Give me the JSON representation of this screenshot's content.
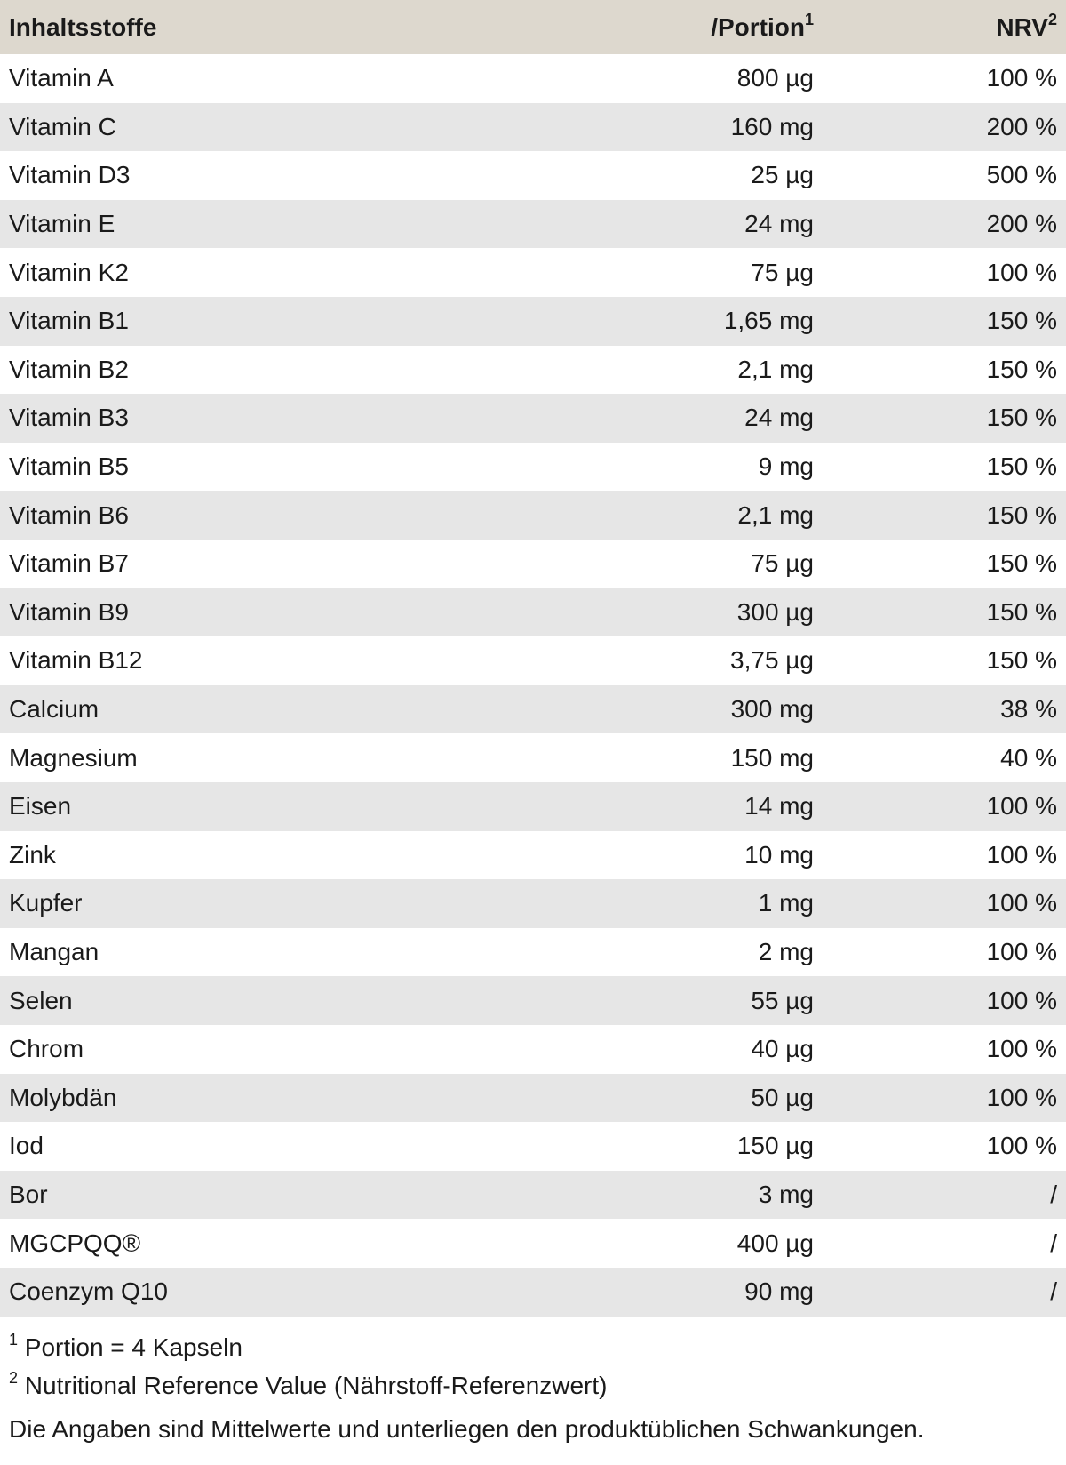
{
  "header": {
    "ingredient": "Inhaltsstoffe",
    "portion": "/Portion",
    "portion_note": "1",
    "nrv": "NRV",
    "nrv_note": "2"
  },
  "table": {
    "rows": [
      [
        "Vitamin A",
        "800 µg",
        "100 %"
      ],
      [
        "Vitamin C",
        "160 mg",
        "200 %"
      ],
      [
        "Vitamin D3",
        "25 µg",
        "500 %"
      ],
      [
        "Vitamin E",
        "24 mg",
        "200 %"
      ],
      [
        "Vitamin K2",
        "75 µg",
        "100 %"
      ],
      [
        "Vitamin B1",
        "1,65 mg",
        "150 %"
      ],
      [
        "Vitamin B2",
        "2,1 mg",
        "150 %"
      ],
      [
        "Vitamin B3",
        "24 mg",
        "150 %"
      ],
      [
        "Vitamin B5",
        "9 mg",
        "150 %"
      ],
      [
        "Vitamin B6",
        "2,1 mg",
        "150 %"
      ],
      [
        "Vitamin B7",
        "75 µg",
        "150 %"
      ],
      [
        "Vitamin B9",
        "300 µg",
        "150 %"
      ],
      [
        "Vitamin B12",
        "3,75 µg",
        "150 %"
      ],
      [
        "Calcium",
        "300 mg",
        "38 %"
      ],
      [
        "Magnesium",
        "150 mg",
        "40 %"
      ],
      [
        "Eisen",
        "14 mg",
        "100 %"
      ],
      [
        "Zink",
        "10 mg",
        "100 %"
      ],
      [
        "Kupfer",
        "1 mg",
        "100 %"
      ],
      [
        "Mangan",
        "2 mg",
        "100 %"
      ],
      [
        "Selen",
        "55 µg",
        "100 %"
      ],
      [
        "Chrom",
        "40 µg",
        "100 %"
      ],
      [
        "Molybdän",
        "50 µg",
        "100 %"
      ],
      [
        "Iod",
        "150 µg",
        "100 %"
      ],
      [
        "Bor",
        "3 mg",
        "/"
      ],
      [
        "MGCPQQ®",
        "400 µg",
        "/"
      ],
      [
        "Coenzym Q10",
        "90 mg",
        "/"
      ]
    ]
  },
  "footnotes": [
    {
      "mark": "1",
      "text": "Portion = 4 Kapseln"
    },
    {
      "mark": "2",
      "text": "Nutritional Reference Value (Nährstoff-Referenzwert)"
    }
  ],
  "disclaimer": "Die Angaben sind Mittelwerte und unterliegen den produktüblichen Schwankungen."
}
